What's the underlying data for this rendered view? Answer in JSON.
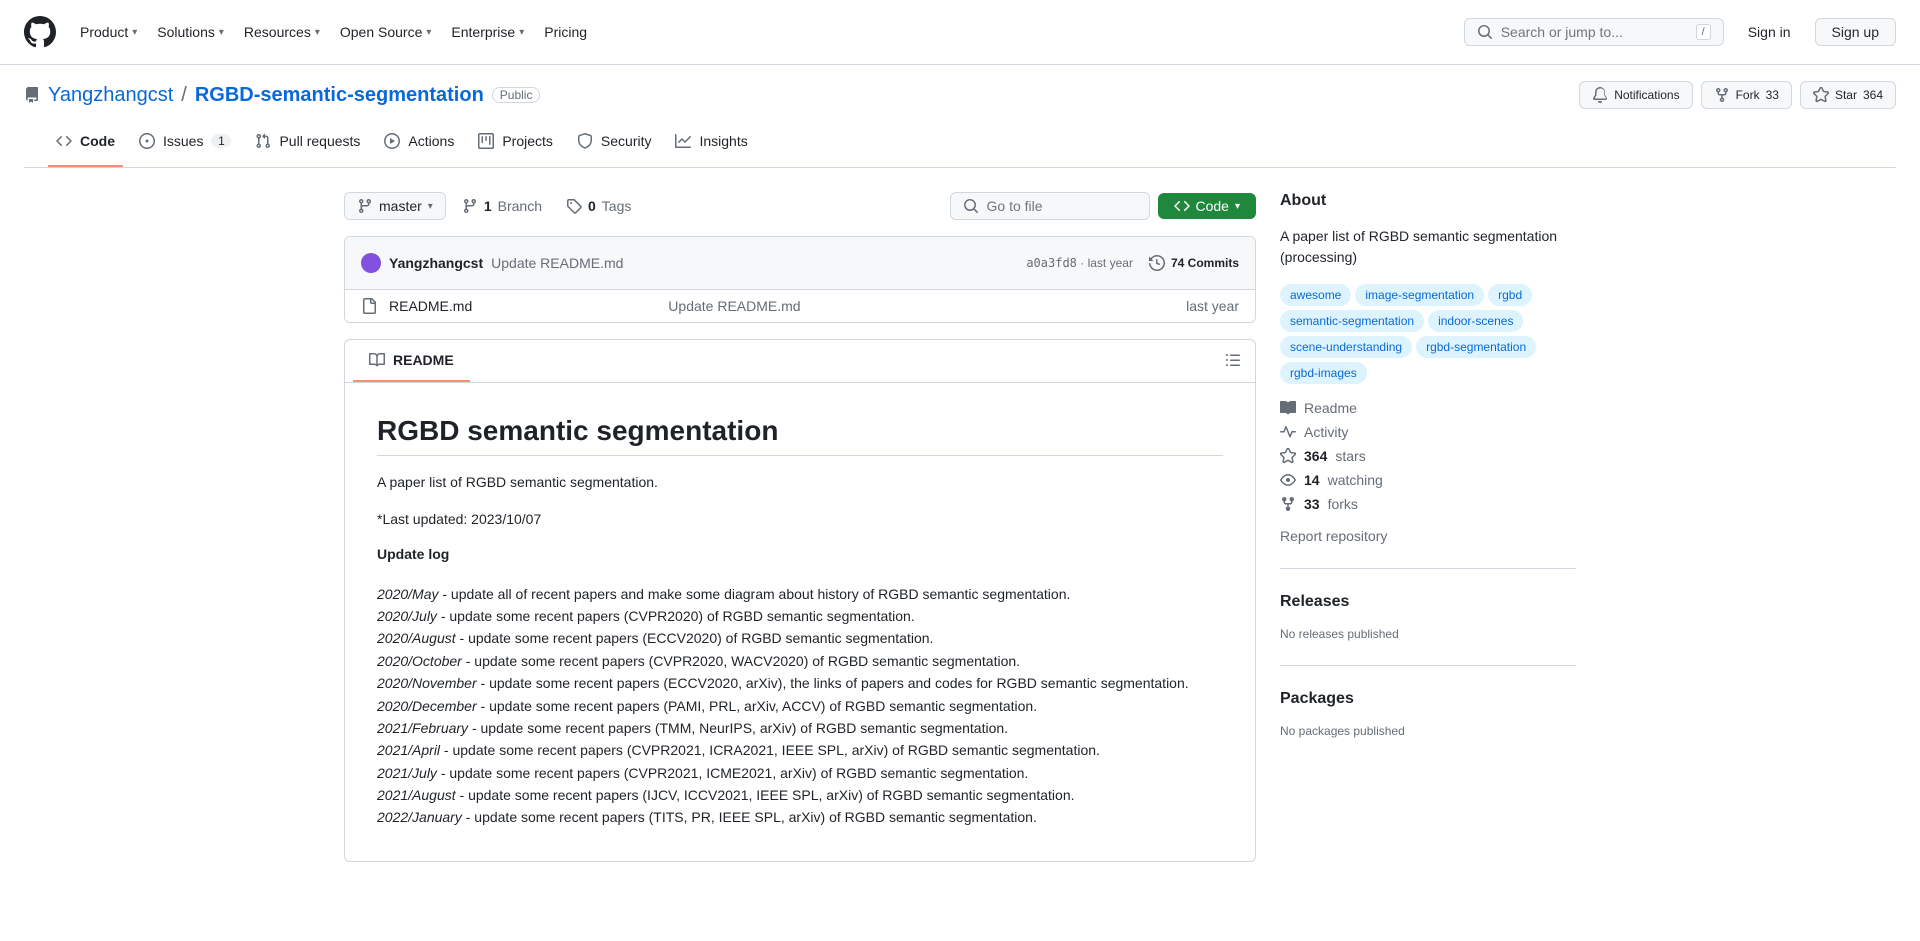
{
  "header": {
    "nav": [
      "Product",
      "Solutions",
      "Resources",
      "Open Source",
      "Enterprise",
      "Pricing"
    ],
    "nav_has_chevron": [
      true,
      true,
      true,
      true,
      true,
      false
    ],
    "search_placeholder": "Search or jump to...",
    "search_kbd": "/",
    "sign_in": "Sign in",
    "sign_up": "Sign up"
  },
  "repo": {
    "owner": "Yangzhangcst",
    "name": "RGBD-semantic-segmentation",
    "visibility": "Public",
    "notifications_label": "Notifications",
    "fork_label": "Fork",
    "fork_count": "33",
    "star_label": "Star",
    "star_count": "364"
  },
  "tabs": {
    "code": "Code",
    "issues": "Issues",
    "issues_count": "1",
    "pull_requests": "Pull requests",
    "actions": "Actions",
    "projects": "Projects",
    "security": "Security",
    "insights": "Insights"
  },
  "file_header": {
    "branch": "master",
    "branch_count": "1",
    "branch_label": "Branch",
    "tags_count": "0",
    "tags_label": "Tags",
    "go_to_file": "Go to file",
    "code_btn": "Code"
  },
  "commit": {
    "author": "Yangzhangcst",
    "message": "Update README.md",
    "hash": "a0a3fd8",
    "date_sep": "·",
    "date": "last year",
    "commits_count": "74",
    "commits_label": "Commits"
  },
  "files": [
    {
      "name": "README.md",
      "msg": "Update README.md",
      "date": "last year"
    }
  ],
  "readme": {
    "tab": "README",
    "title": "RGBD semantic segmentation",
    "intro": "A paper list of RGBD semantic segmentation.",
    "updated": "*Last updated: 2023/10/07",
    "update_log_heading": "Update log",
    "log": [
      {
        "date": "2020/May",
        "text": " - update all of recent papers and make some diagram about history of RGBD semantic segmentation."
      },
      {
        "date": "2020/July",
        "text": " - update some recent papers (CVPR2020) of RGBD semantic segmentation."
      },
      {
        "date": "2020/August",
        "text": " - update some recent papers (ECCV2020) of RGBD semantic segmentation."
      },
      {
        "date": "2020/October",
        "text": " - update some recent papers (CVPR2020, WACV2020) of RGBD semantic segmentation."
      },
      {
        "date": "2020/November",
        "text": " - update some recent papers (ECCV2020, arXiv), the links of papers and codes for RGBD semantic segmentation."
      },
      {
        "date": "2020/December",
        "text": " - update some recent papers (PAMI, PRL, arXiv, ACCV) of RGBD semantic segmentation."
      },
      {
        "date": "2021/February",
        "text": " - update some recent papers (TMM, NeurIPS, arXiv) of RGBD semantic segmentation."
      },
      {
        "date": "2021/April",
        "text": " - update some recent papers (CVPR2021, ICRA2021, IEEE SPL, arXiv) of RGBD semantic segmentation."
      },
      {
        "date": "2021/July",
        "text": " - update some recent papers (CVPR2021, ICME2021, arXiv) of RGBD semantic segmentation."
      },
      {
        "date": "2021/August",
        "text": " - update some recent papers (IJCV, ICCV2021, IEEE SPL, arXiv) of RGBD semantic segmentation."
      },
      {
        "date": "2022/January",
        "text": " - update some recent papers (TITS, PR, IEEE SPL, arXiv) of RGBD semantic segmentation."
      }
    ]
  },
  "about": {
    "heading": "About",
    "description": "A paper list of RGBD semantic segmentation (processing)",
    "topics": [
      "awesome",
      "image-segmentation",
      "rgbd",
      "semantic-segmentation",
      "indoor-scenes",
      "scene-understanding",
      "rgbd-segmentation",
      "rgbd-images"
    ],
    "readme_link": "Readme",
    "activity_link": "Activity",
    "stars_count": "364",
    "stars_label": "stars",
    "watching_count": "14",
    "watching_label": "watching",
    "forks_count": "33",
    "forks_label": "forks",
    "report": "Report repository"
  },
  "releases": {
    "heading": "Releases",
    "empty": "No releases published"
  },
  "packages": {
    "heading": "Packages",
    "empty": "No packages published"
  }
}
